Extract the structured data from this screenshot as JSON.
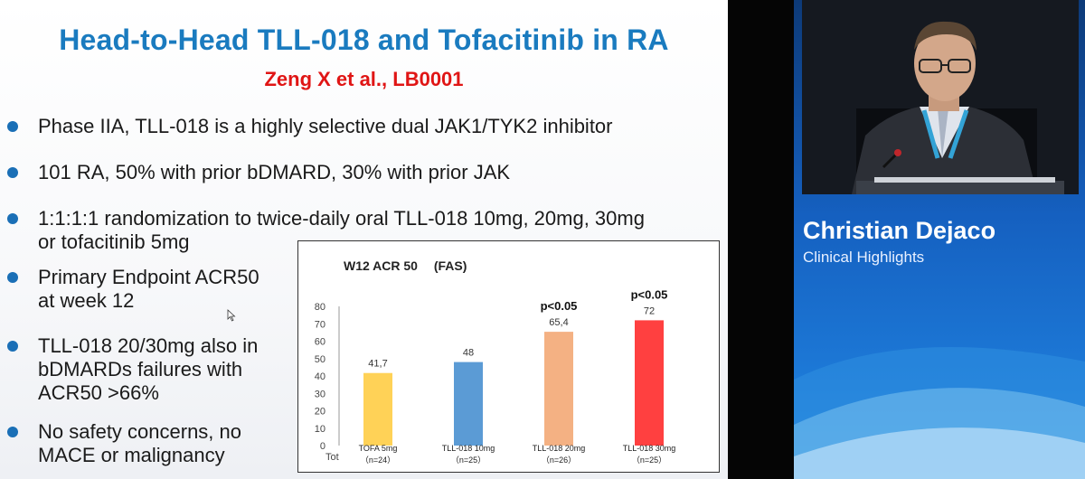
{
  "slide": {
    "title": "Head-to-Head TLL-018 and Tofacitinib in RA",
    "subtitle": "Zeng X et al., LB0001",
    "bullets": [
      "Phase IIA, TLL-018 is a highly selective dual JAK1/TYK2 inhibitor",
      "101 RA, 50% with prior bDMARD, 30% with prior JAK",
      "1:1:1:1 randomization to twice-daily oral TLL-018 10mg, 20mg, 30mg\nor tofacitinib 5mg",
      "Primary Endpoint ACR50\nat week 12",
      "TLL-018 20/30mg also in\nbDMARDs failures with\nACR50 >66%",
      "No safety concerns, no\nMACE or malignancy"
    ],
    "bullet_color": "#1a6fb6"
  },
  "chart_data": {
    "type": "bar",
    "title": "W12 ACR 50 　(FAS)",
    "categories": [
      "TOFA 5mg",
      "TLL-018 10mg",
      "TLL-018 20mg",
      "TLL-018 30mg"
    ],
    "n_labels": [
      "（n=24）",
      "（n=25）",
      "（n=26）",
      "（n=25）"
    ],
    "values": [
      41.7,
      48,
      65.4,
      72
    ],
    "value_labels": [
      "41,7",
      "48",
      "65,4",
      "72"
    ],
    "annotations": [
      "",
      "",
      "p<0.05",
      "p<0.05"
    ],
    "colors": [
      "#ffd257",
      "#5b9bd5",
      "#f4b183",
      "#ff4040"
    ],
    "ylim": [
      0,
      80
    ],
    "yticks": [
      0,
      10,
      20,
      30,
      40,
      50,
      60,
      70,
      80
    ],
    "y_corner_label": "Tot",
    "grid": false
  },
  "speaker": {
    "name": "Christian Dejaco",
    "role": "Clinical Highlights"
  }
}
